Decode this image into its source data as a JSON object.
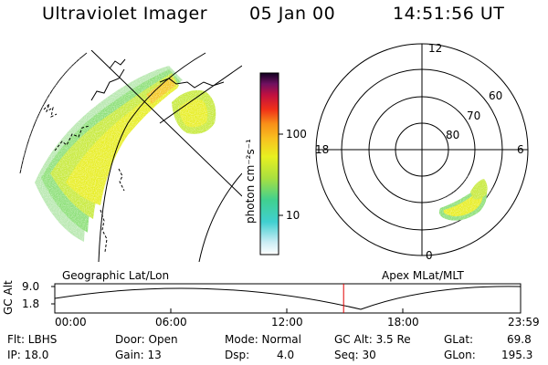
{
  "header": {
    "title": "Ultraviolet Imager",
    "date": "05 Jan 00",
    "time": "14:51:56 UT"
  },
  "colorbar": {
    "unit_label": "photon cm⁻²s⁻¹",
    "ticks": [
      "100",
      "10"
    ]
  },
  "polar_plot": {
    "mlt_labels": [
      "12",
      "18",
      "6",
      "0"
    ],
    "lat_labels": [
      "60",
      "70",
      "80"
    ]
  },
  "altitude_strip": {
    "ylabel": "GC Alt",
    "yticks": [
      "9.0",
      "1.8"
    ],
    "left_title": "Geographic Lat/Lon",
    "right_title": "Apex  MLat/MLT",
    "xticks": [
      "00:00",
      "06:00",
      "12:00",
      "18:00",
      "23:59"
    ],
    "current_time_fraction": 0.62
  },
  "info": {
    "flt": "Flt: LBHS",
    "ip": "IP: 18.0",
    "door": "Door: Open",
    "gain": "Gain: 13",
    "mode": "Mode: Normal",
    "dsp_label": "Dsp:",
    "dsp_value": "4.0",
    "gc_alt": "GC Alt: 3.5 Re",
    "seq": "Seq: 30",
    "glat_label": "GLat:",
    "glat_value": "69.8",
    "glon_label": "GLon:",
    "glon_value": "195.3"
  }
}
